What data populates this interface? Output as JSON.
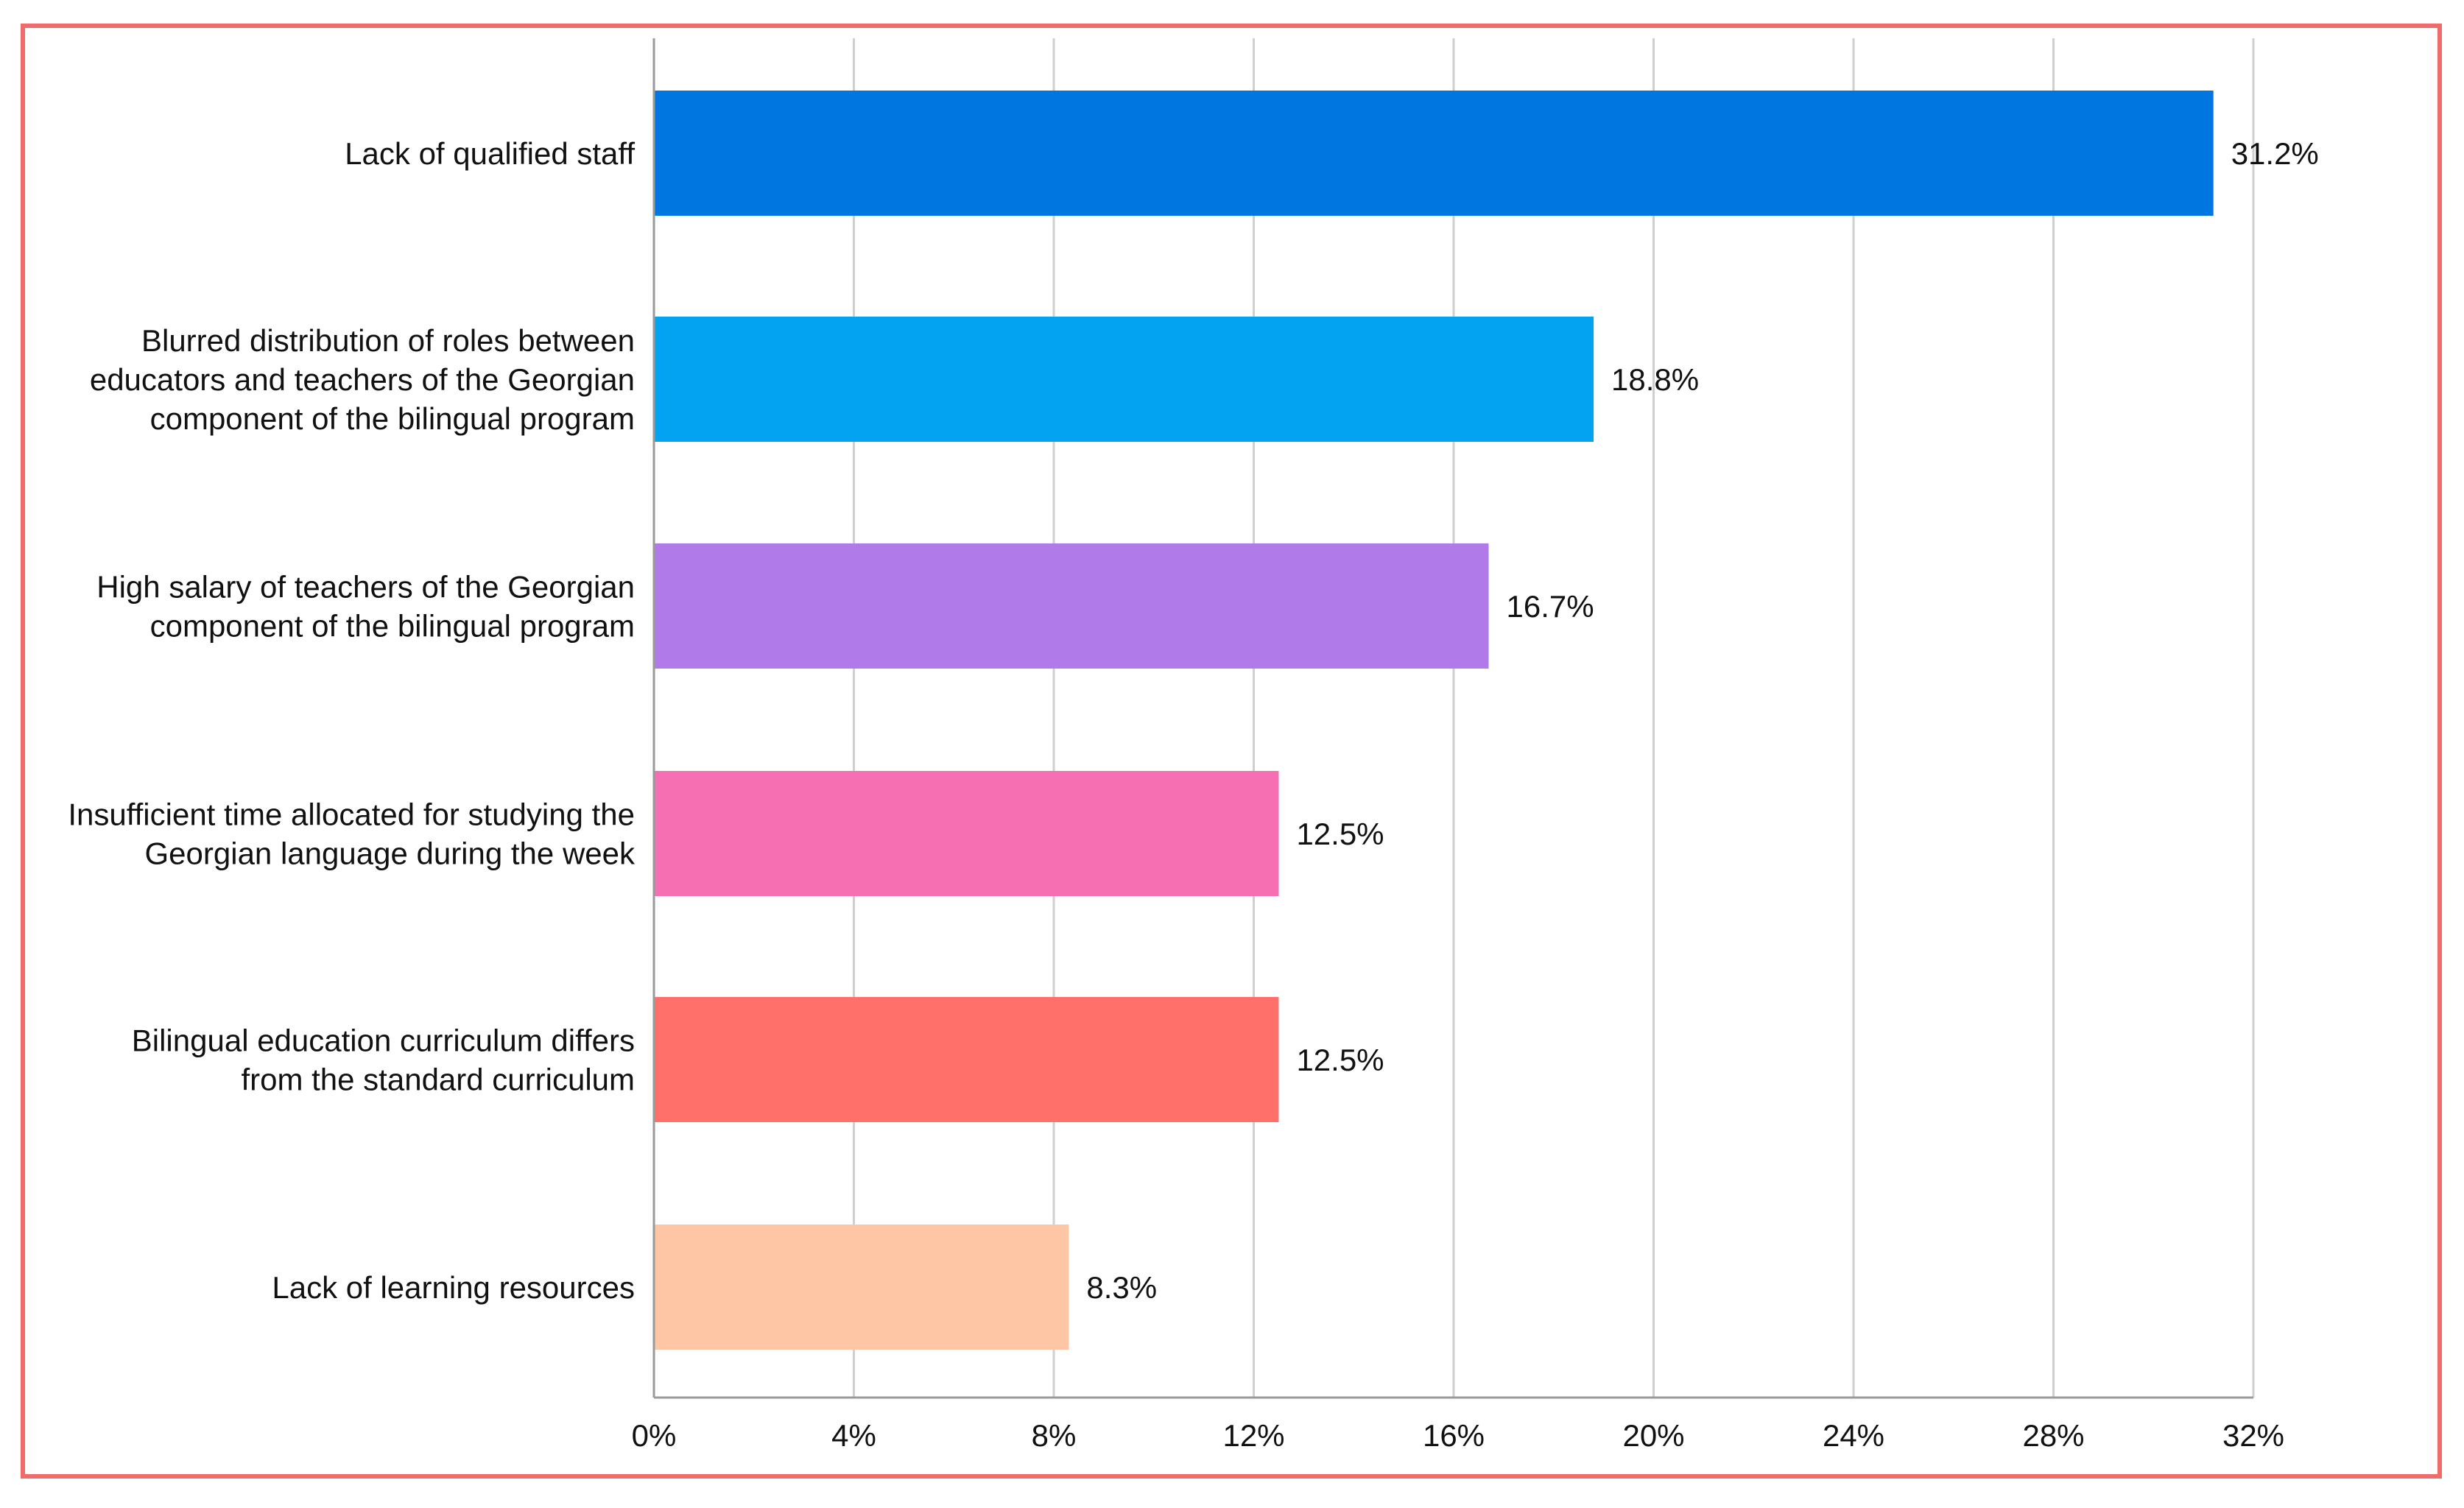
{
  "chart_data": {
    "type": "bar",
    "orientation": "horizontal",
    "title": "",
    "xlabel": "",
    "ylabel": "",
    "xlim": [
      0,
      32
    ],
    "x_tick_values": [
      0,
      4,
      8,
      12,
      16,
      20,
      24,
      28,
      32
    ],
    "x_tick_labels": [
      "0%",
      "4%",
      "8%",
      "12%",
      "16%",
      "20%",
      "24%",
      "28%",
      "32%"
    ],
    "grid": true,
    "legend": "none",
    "categories": [
      [
        "Lack of qualified staff"
      ],
      [
        "Blurred distribution of roles between",
        "educators and teachers of the Georgian",
        "component of the bilingual program"
      ],
      [
        "High salary of teachers of the Georgian",
        "component of the bilingual program"
      ],
      [
        "Insufficient time allocated for studying the",
        "Georgian language during the week"
      ],
      [
        "Bilingual education curriculum differs",
        "from the standard curriculum"
      ],
      [
        "Lack of learning resources"
      ]
    ],
    "values": [
      31.2,
      18.8,
      16.7,
      12.5,
      12.5,
      8.3
    ],
    "value_labels": [
      "31.2%",
      "18.8%",
      "16.7%",
      "12.5%",
      "12.5%",
      "8.3%"
    ],
    "colors": [
      "#0077e0",
      "#03a3f2",
      "#b07ae8",
      "#f76fb3",
      "#ff706b",
      "#fec6a5"
    ]
  },
  "style": {
    "frame_color": "#f26b6b",
    "grid_color": "#cfcfcf",
    "axis_color": "#9a9a9a",
    "text_color": "#111111"
  }
}
